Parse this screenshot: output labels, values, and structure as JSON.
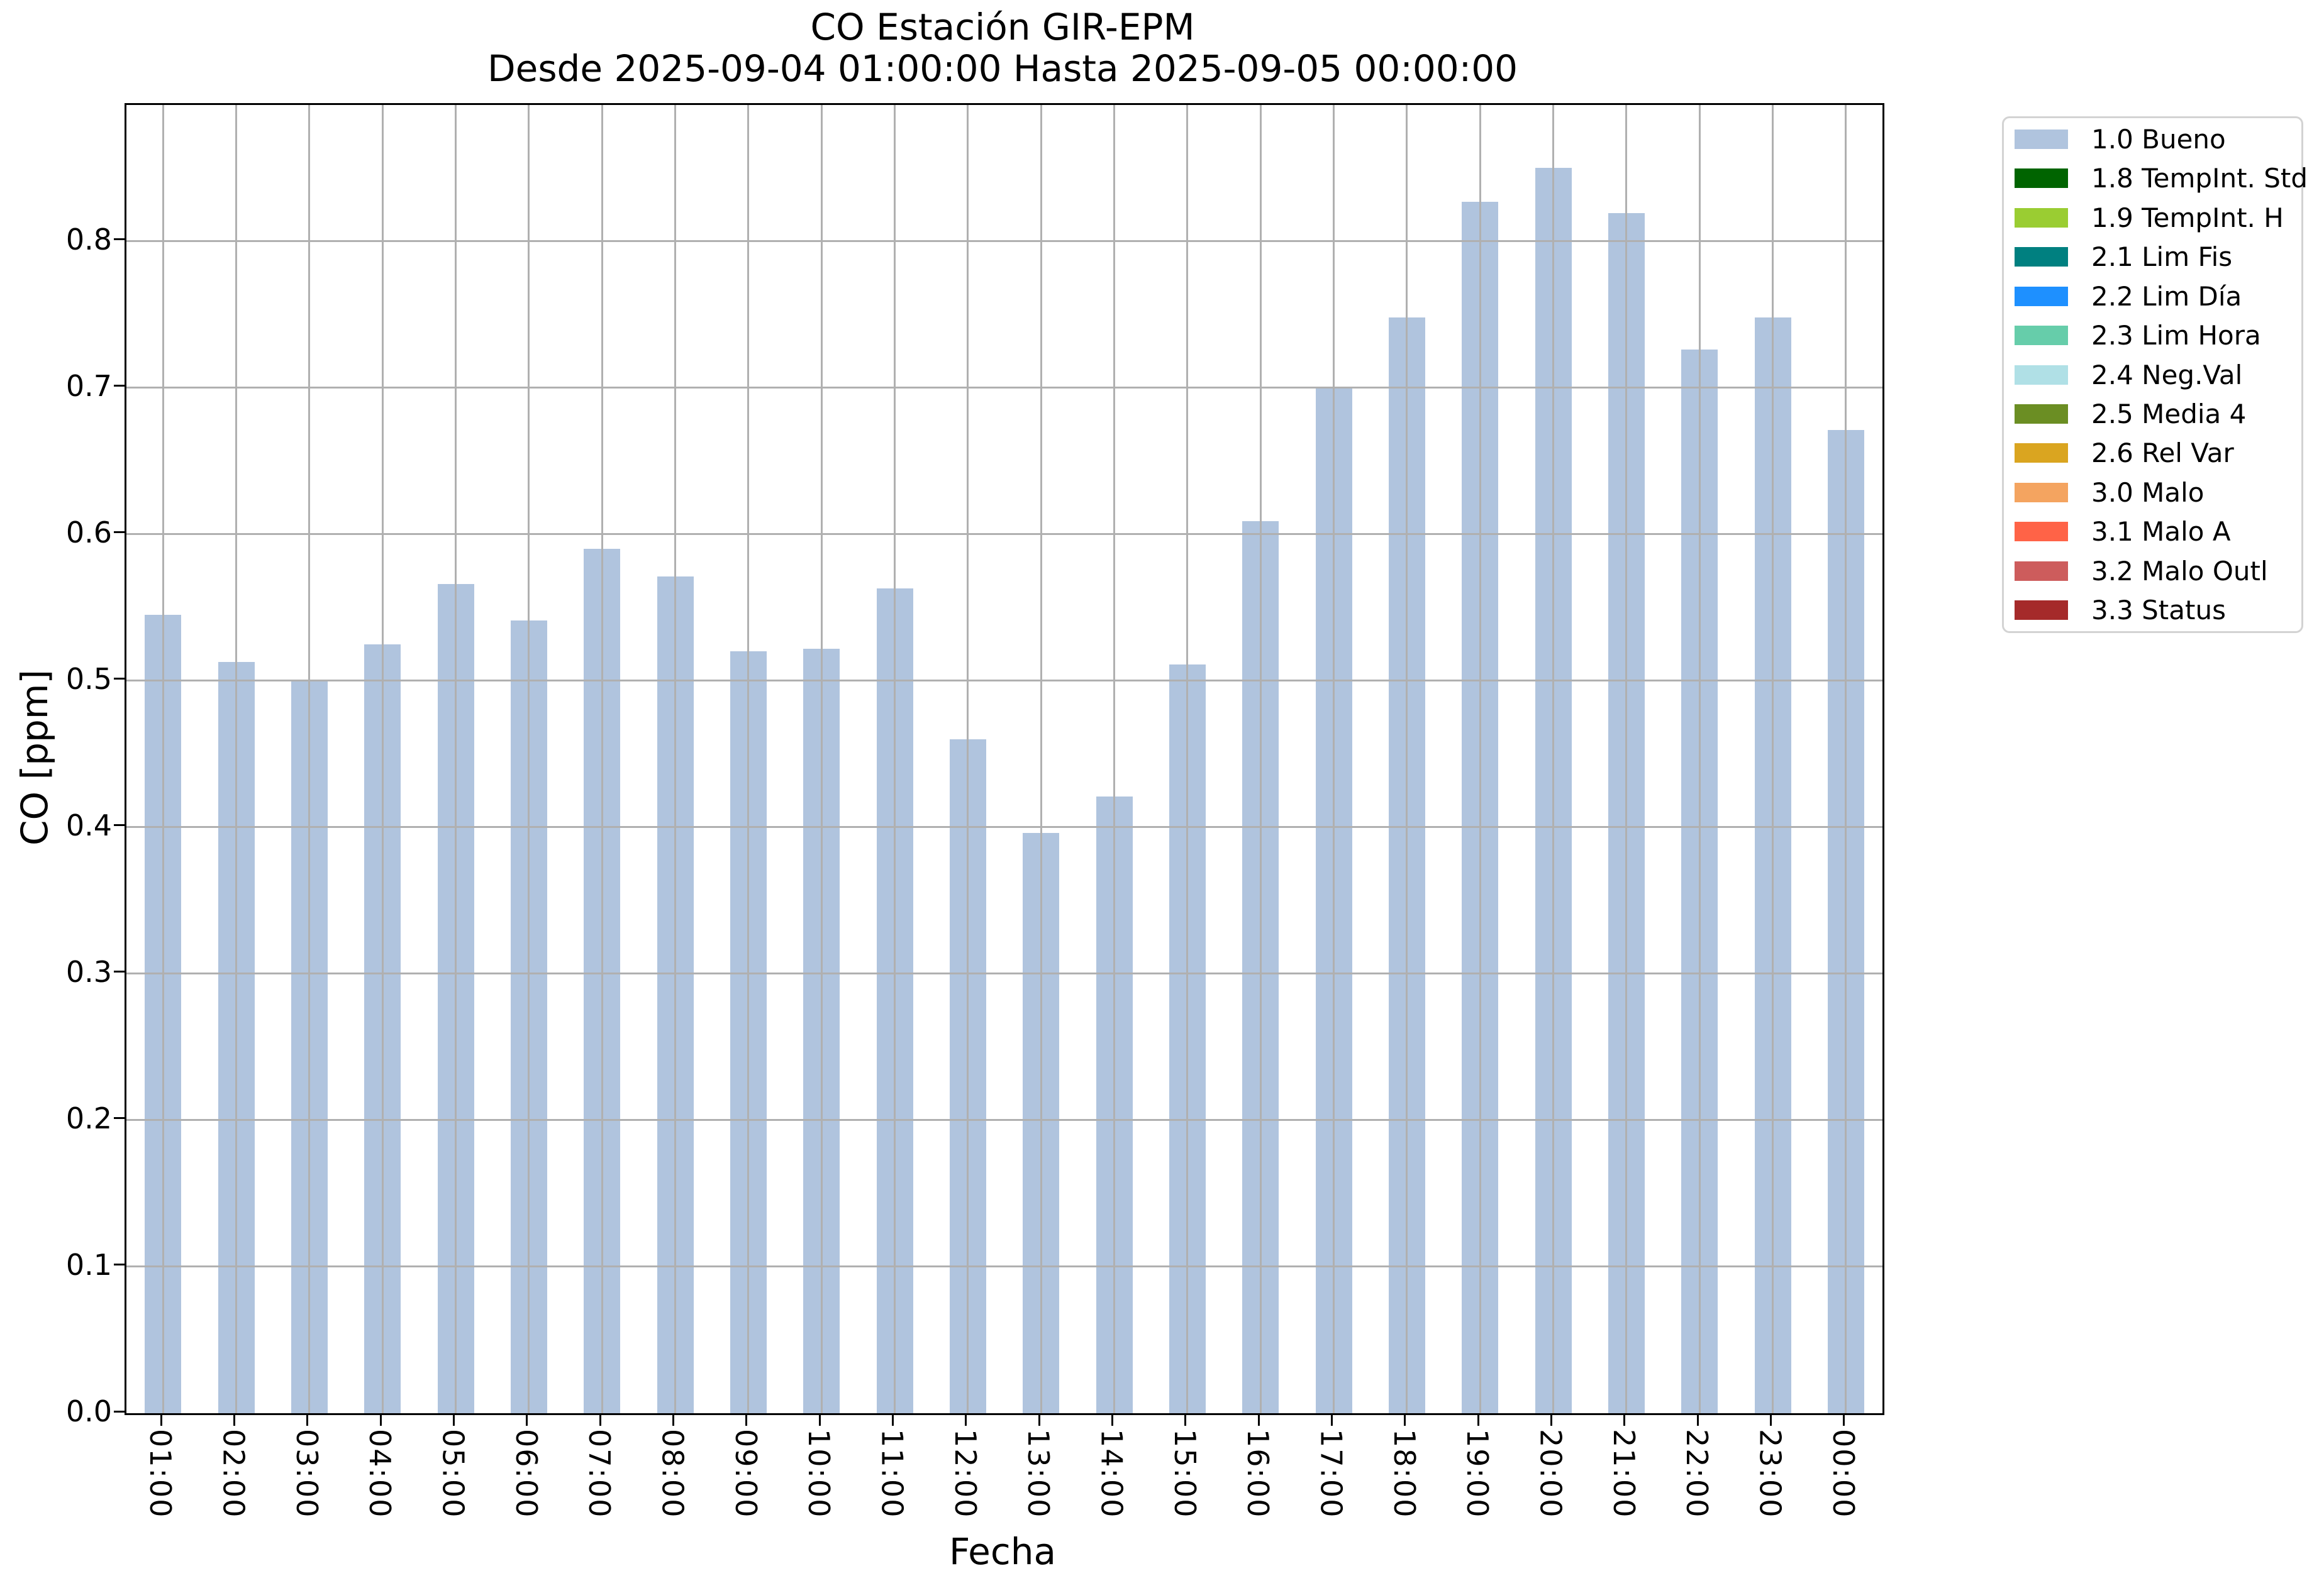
{
  "chart_data": {
    "type": "bar",
    "title": "CO Estación GIR-EPM",
    "subtitle": "Desde 2025-09-04 01:00:00 Hasta 2025-09-05 00:00:00",
    "xlabel": "Fecha",
    "ylabel": "CO [ppm]",
    "categories": [
      "01:00",
      "02:00",
      "03:00",
      "04:00",
      "05:00",
      "06:00",
      "07:00",
      "08:00",
      "09:00",
      "10:00",
      "11:00",
      "12:00",
      "13:00",
      "14:00",
      "15:00",
      "16:00",
      "17:00",
      "18:00",
      "19:00",
      "20:00",
      "21:00",
      "22:00",
      "23:00",
      "00:00"
    ],
    "values": [
      0.545,
      0.513,
      0.5,
      0.525,
      0.566,
      0.541,
      0.59,
      0.571,
      0.52,
      0.522,
      0.563,
      0.46,
      0.396,
      0.421,
      0.511,
      0.609,
      0.7,
      0.748,
      0.827,
      0.85,
      0.819,
      0.726,
      0.748,
      0.671
    ],
    "series_name": "1.0 Bueno",
    "bar_color": "#b0c4de",
    "ylim": [
      0.0,
      0.893
    ],
    "yticks": [
      "0.0",
      "0.1",
      "0.2",
      "0.3",
      "0.4",
      "0.5",
      "0.6",
      "0.7",
      "0.8"
    ],
    "grid": true,
    "grid_color": "#b0b0b0",
    "legend_position": "outside-upper-right",
    "legend": [
      {
        "label": "1.0 Bueno",
        "color": "#b0c4de"
      },
      {
        "label": "1.8 TempInt. Std",
        "color": "#006400"
      },
      {
        "label": "1.9 TempInt. H",
        "color": "#9acd32"
      },
      {
        "label": "2.1 Lim Fis",
        "color": "#008080"
      },
      {
        "label": "2.2 Lim Día",
        "color": "#1e90ff"
      },
      {
        "label": "2.3 Lim Hora",
        "color": "#66cdaa"
      },
      {
        "label": "2.4 Neg.Val",
        "color": "#b0e0e6"
      },
      {
        "label": "2.5 Media 4",
        "color": "#6b8e23"
      },
      {
        "label": "2.6 Rel Var",
        "color": "#daa520"
      },
      {
        "label": "3.0 Malo",
        "color": "#f4a460"
      },
      {
        "label": "3.1 Malo A",
        "color": "#ff6347"
      },
      {
        "label": "3.2 Malo Outl",
        "color": "#cd5c5c"
      },
      {
        "label": "3.3 Status",
        "color": "#a52a2a"
      }
    ]
  }
}
